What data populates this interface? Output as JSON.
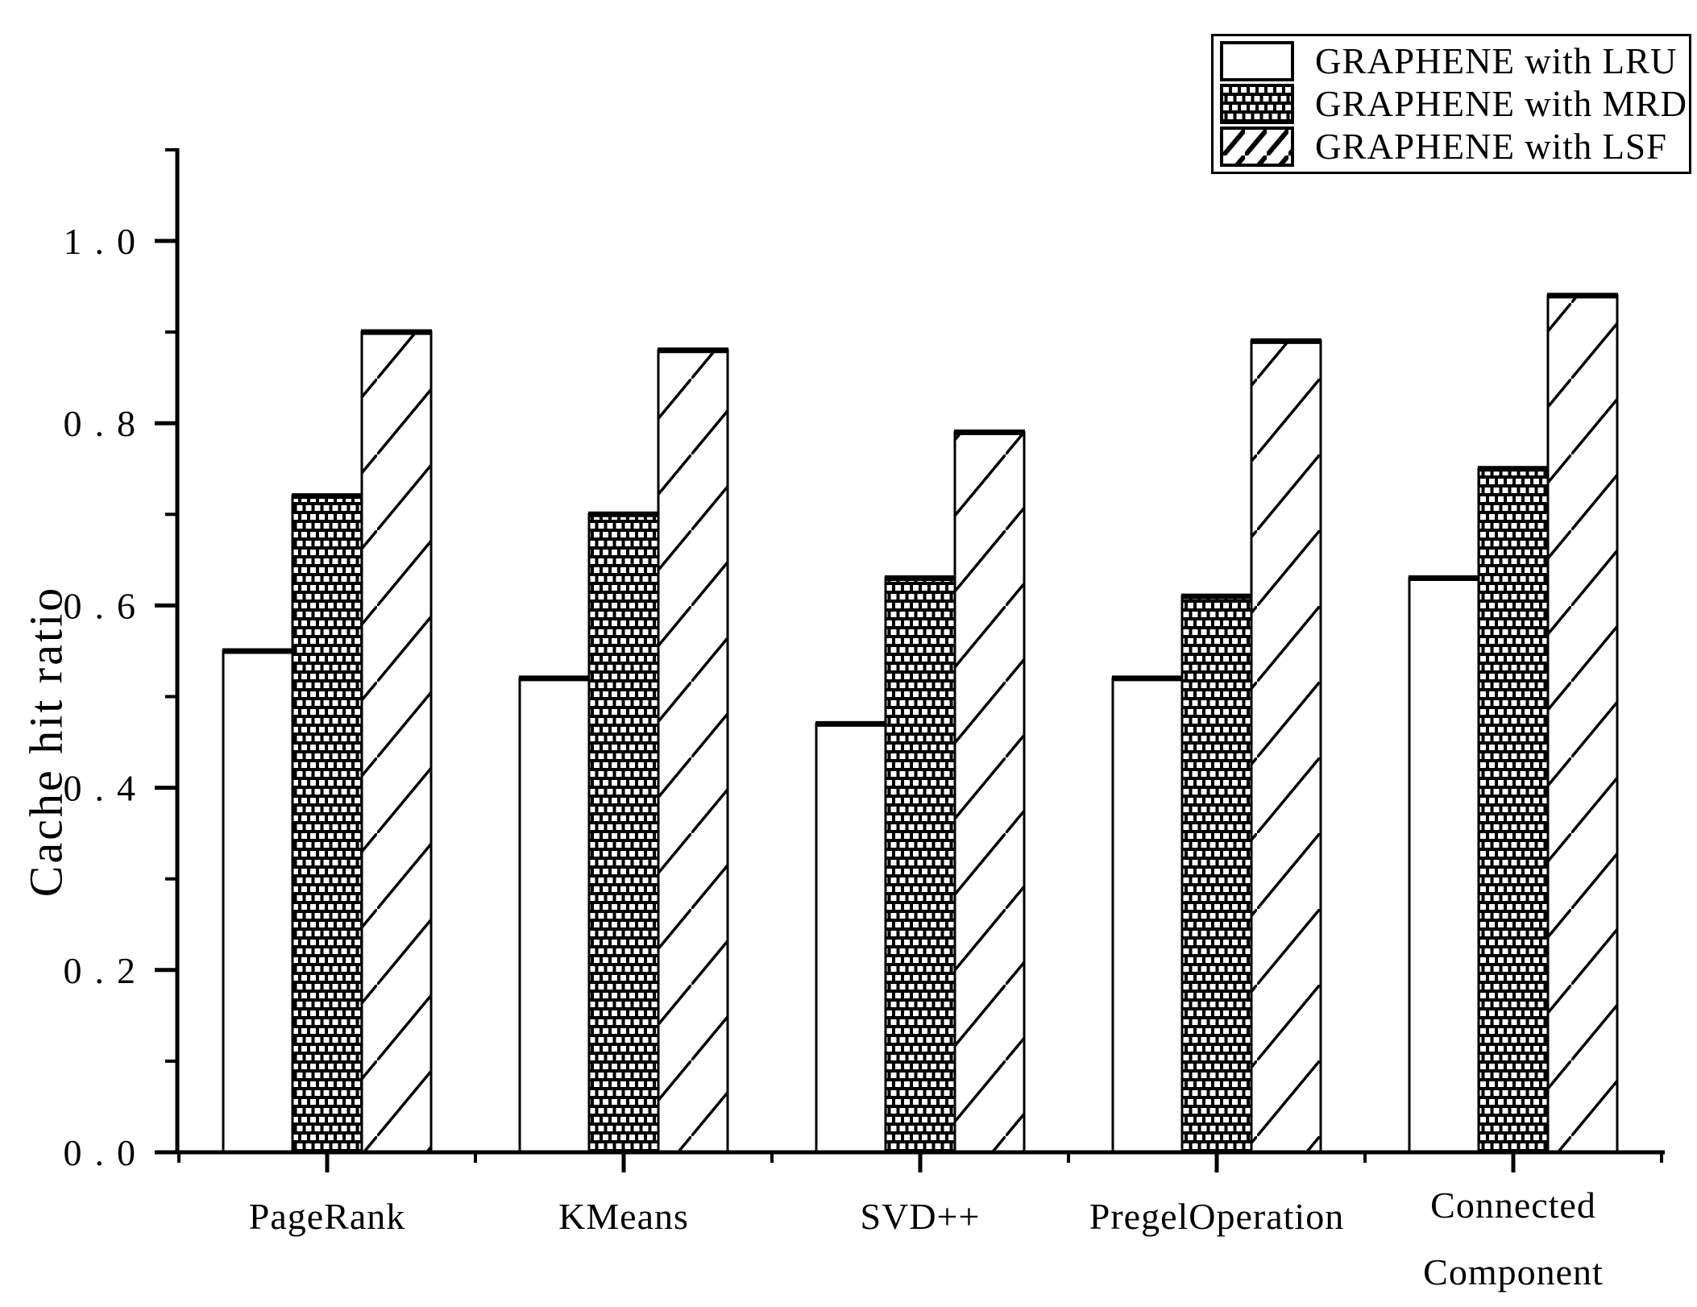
{
  "chart_data": {
    "type": "bar",
    "title": "",
    "xlabel": "",
    "ylabel": "Cache hit ratio",
    "ylim": [
      0,
      1.1
    ],
    "ytick_step": 0.2,
    "ytick_minor_step": 0.1,
    "ytick_labels": [
      "0.0",
      "0.2",
      "0.4",
      "0.6",
      "0.8",
      "1.0"
    ],
    "grid": false,
    "legend_position": "top-right",
    "categories": [
      "PageRank",
      "KMeans",
      "SVD++",
      "PregelOperation",
      "Connected Component"
    ],
    "categories_lines": [
      [
        "PageRank"
      ],
      [
        "KMeans"
      ],
      [
        "SVD++"
      ],
      [
        "PregelOperation"
      ],
      [
        "Connected",
        "Component"
      ]
    ],
    "series": [
      {
        "name": "GRAPHENE with LRU",
        "pattern": "plain",
        "values": [
          0.55,
          0.52,
          0.47,
          0.52,
          0.63
        ]
      },
      {
        "name": "GRAPHENE with MRD",
        "pattern": "checker-dots",
        "values": [
          0.72,
          0.7,
          0.63,
          0.61,
          0.75
        ]
      },
      {
        "name": "GRAPHENE with LSF",
        "pattern": "diagonal-hatch",
        "values": [
          0.9,
          0.88,
          0.79,
          0.89,
          0.94
        ]
      }
    ],
    "colors": {
      "foreground": "#000000",
      "background": "#ffffff"
    }
  }
}
